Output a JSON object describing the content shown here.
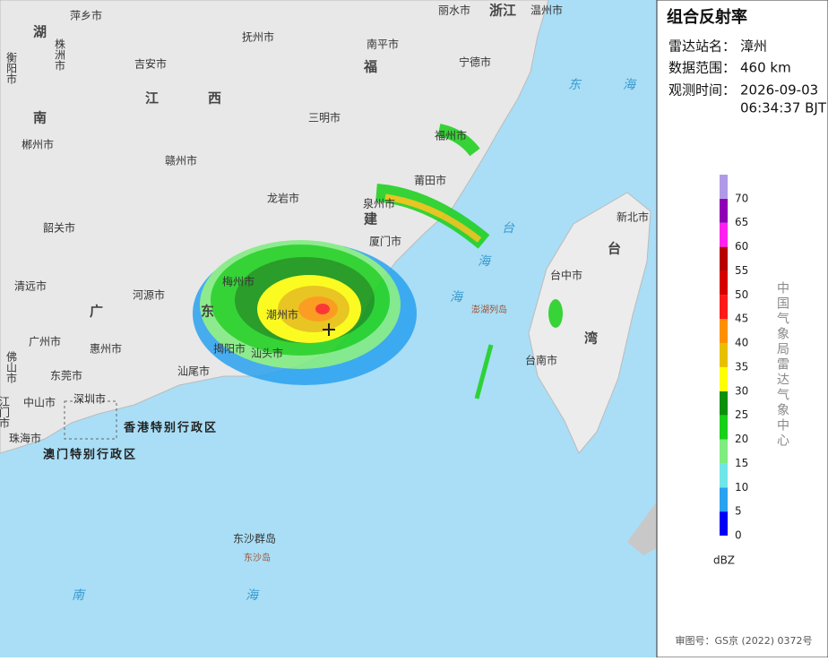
{
  "panel": {
    "title": "组合反射率",
    "station_label": "雷达站名：",
    "station": "漳州",
    "range_label": "数据范围：",
    "range": "460 km",
    "time_label": "观测时间：",
    "date": "2026-09-03",
    "time": "06:34:37 BJT",
    "agency": "中国气象局雷达气象中心",
    "approval": "审图号：GS京 (2022) 0372号"
  },
  "legend": {
    "unit": "dBZ",
    "ticks": [
      0,
      5,
      10,
      15,
      20,
      25,
      30,
      35,
      40,
      45,
      50,
      55,
      60,
      65,
      70
    ],
    "colors": [
      "#0000f6",
      "#2aa2f0",
      "#70e6e8",
      "#7eec7e",
      "#18d018",
      "#0a900a",
      "#ffff00",
      "#e8c000",
      "#ff9000",
      "#ff1a1a",
      "#d60000",
      "#b80000",
      "#ff20f0",
      "#9000b4",
      "#b09ae8"
    ]
  },
  "map": {
    "labels": [
      "萍乡市",
      "丽水市",
      "浙江",
      "温州市",
      "湖",
      "衡阳市",
      "株洲市",
      "抚州市",
      "南平市",
      "吉安市",
      "福",
      "宁德市",
      "东",
      "海",
      "江",
      "西",
      "南",
      "三明市",
      "郴州市",
      "福州市",
      "赣州市",
      "莆田市",
      "龙岩市",
      "泉州市",
      "新北市",
      "韶关市",
      "建",
      "厦门市",
      "台",
      "海",
      "台",
      "清远市",
      "河源市",
      "梅州市",
      "台中市",
      "广",
      "东",
      "潮州市",
      "澎湖列岛",
      "湾",
      "海",
      "广州市",
      "惠州市",
      "揭阳市",
      "汕头市",
      "台南市",
      "佛山市",
      "汕尾市",
      "东莞市",
      "深圳市",
      "中山市",
      "江门市",
      "珠海市",
      "香港特别行政区",
      "澳门特别行政区",
      "东沙群岛",
      "东沙岛",
      "南",
      "海"
    ]
  }
}
